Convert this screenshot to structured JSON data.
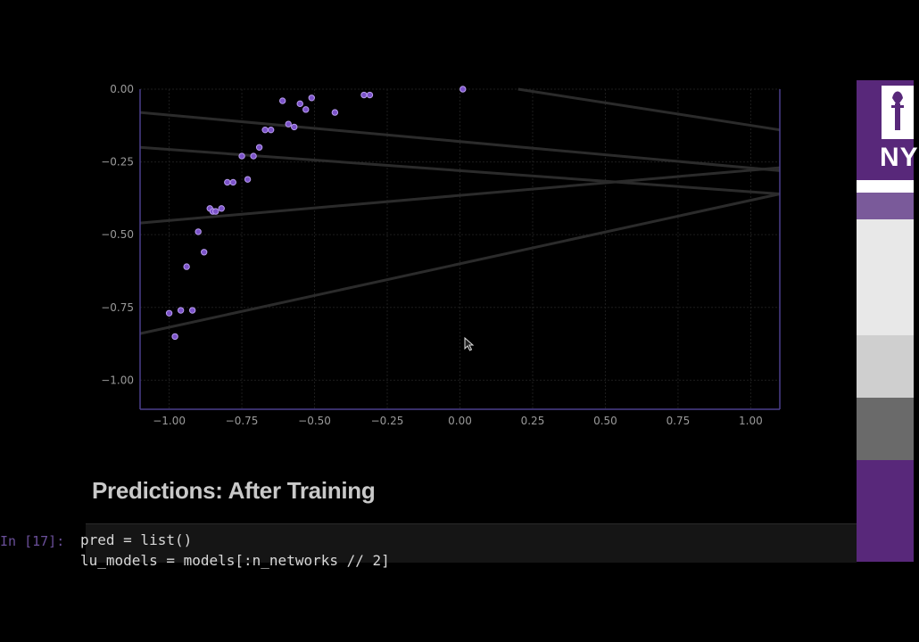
{
  "chart_data": {
    "type": "scatter",
    "title": "",
    "xlabel": "",
    "ylabel": "",
    "xlim": [
      -1.1,
      1.1
    ],
    "ylim": [
      -1.1,
      0.0
    ],
    "xticks": [
      -1.0,
      -0.75,
      -0.5,
      -0.25,
      0.0,
      0.25,
      0.5,
      0.75,
      1.0
    ],
    "xtick_labels": [
      "−1.00",
      "−0.75",
      "−0.50",
      "−0.25",
      "0.00",
      "0.25",
      "0.50",
      "0.75",
      "1.00"
    ],
    "yticks": [
      0.0,
      -0.25,
      -0.5,
      -0.75,
      -1.0
    ],
    "ytick_labels": [
      "0.00",
      "−0.25",
      "−0.50",
      "−0.75",
      "−1.00"
    ],
    "grid": true,
    "scatter_points": {
      "x": [
        -1.0,
        -0.98,
        -0.96,
        -0.94,
        -0.92,
        -0.9,
        -0.88,
        -0.86,
        -0.85,
        -0.84,
        -0.82,
        -0.8,
        -0.78,
        -0.75,
        -0.73,
        -0.71,
        -0.69,
        -0.67,
        -0.65,
        -0.61,
        -0.59,
        -0.57,
        -0.55,
        -0.53,
        -0.51,
        -0.43,
        -0.33,
        -0.31,
        0.01
      ],
      "y": [
        -0.77,
        -0.85,
        -0.76,
        -0.61,
        -0.76,
        -0.49,
        -0.56,
        -0.41,
        -0.42,
        -0.42,
        -0.41,
        -0.32,
        -0.32,
        -0.23,
        -0.31,
        -0.23,
        -0.2,
        -0.14,
        -0.14,
        -0.04,
        -0.12,
        -0.13,
        -0.05,
        -0.07,
        -0.03,
        -0.08,
        -0.02,
        -0.02,
        0.0
      ]
    },
    "lines": [
      {
        "x": [
          -1.1,
          1.1
        ],
        "y": [
          -0.08,
          -0.28
        ]
      },
      {
        "x": [
          -1.1,
          1.1
        ],
        "y": [
          -0.2,
          -0.36
        ]
      },
      {
        "x": [
          -1.1,
          1.1
        ],
        "y": [
          -0.46,
          -0.27
        ]
      },
      {
        "x": [
          -1.1,
          1.1
        ],
        "y": [
          -0.84,
          -0.36
        ]
      },
      {
        "x": [
          0.2,
          1.1
        ],
        "y": [
          0.0,
          -0.14
        ]
      }
    ],
    "colors": {
      "points": "#7b52c8",
      "point_edge": "#b89cf0",
      "lines": "#2b2b2b",
      "grid": "#1d1d1d",
      "spine": "#4a3f8c"
    }
  },
  "heading": "Predictions: After Training",
  "code_cell": {
    "prompt": "In [17]:",
    "line1": "pred = list()",
    "line2": "lu_models = models[:n_networks // 2]"
  },
  "sidebar": {
    "logo_text": "NY",
    "logo_icon": "nyu-torch-icon",
    "background": "#58287a"
  }
}
